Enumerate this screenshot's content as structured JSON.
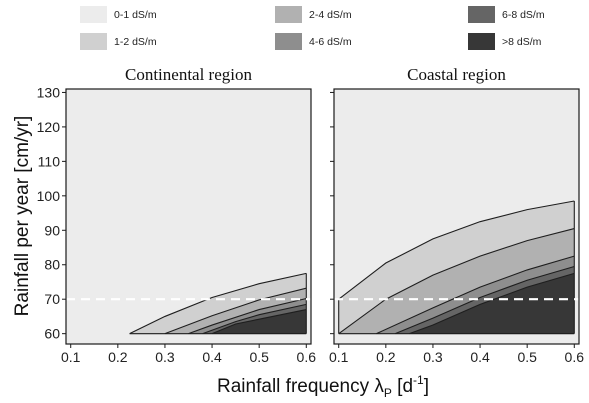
{
  "chart_data": {
    "type": "area",
    "legend": {
      "placement": "top",
      "entries": [
        {
          "label": "0-1 dS/m",
          "color": "#ececec"
        },
        {
          "label": "1-2 dS/m",
          "color": "#d0d0d0"
        },
        {
          "label": "2-4 dS/m",
          "color": "#b1b1b1"
        },
        {
          "label": "4-6 dS/m",
          "color": "#8e8e8e"
        },
        {
          "label": "6-8 dS/m",
          "color": "#656565"
        },
        {
          "label": ">8 dS/m",
          "color": "#373737"
        }
      ]
    },
    "xlabel": {
      "main": "Rainfall frequency λ",
      "sub": "P",
      "unit_open": " [d",
      "unit_sup": "-1",
      "unit_close": "]"
    },
    "ylabel": "Rainfall per year [cm/yr]",
    "xlim": [
      0.09,
      0.61
    ],
    "ylim": [
      57,
      131
    ],
    "xticks": [
      "0.1",
      "0.2",
      "0.3",
      "0.4",
      "0.5",
      "0.6"
    ],
    "yticks": [
      "60",
      "70",
      "80",
      "90",
      "100",
      "110",
      "120",
      "130"
    ],
    "grid": false,
    "reference_line": {
      "y": 70,
      "style": "dashed",
      "color": "#ffffff"
    },
    "panels": [
      {
        "title": "Continental region",
        "boundaries": [
          {
            "x": [
              0.225,
              0.3,
              0.4,
              0.5,
              0.6
            ],
            "y": [
              60,
              65,
              70.5,
              74.5,
              77.5
            ]
          },
          {
            "x": [
              0.3,
              0.4,
              0.5,
              0.6
            ],
            "y": [
              60,
              65.2,
              69.8,
              73.2
            ]
          },
          {
            "x": [
              0.35,
              0.4,
              0.5,
              0.6
            ],
            "y": [
              60,
              62.5,
              67,
              70.2
            ]
          },
          {
            "x": [
              0.38,
              0.45,
              0.5,
              0.6
            ],
            "y": [
              60,
              63.5,
              65.5,
              68.5
            ]
          },
          {
            "x": [
              0.4,
              0.45,
              0.5,
              0.6
            ],
            "y": [
              60,
              62.8,
              64.2,
              67
            ]
          }
        ]
      },
      {
        "title": "Coastal region",
        "boundaries": [
          {
            "x": [
              0.1,
              0.2,
              0.3,
              0.4,
              0.5,
              0.6
            ],
            "y": [
              70,
              80.5,
              87.5,
              92.5,
              96,
              98.5
            ]
          },
          {
            "x": [
              0.1,
              0.2,
              0.3,
              0.4,
              0.5,
              0.6
            ],
            "y": [
              60,
              70,
              77,
              82.5,
              87,
              90.5
            ]
          },
          {
            "x": [
              0.18,
              0.3,
              0.4,
              0.5,
              0.6
            ],
            "y": [
              60,
              67.5,
              73.5,
              78.5,
              82.5
            ]
          },
          {
            "x": [
              0.22,
              0.3,
              0.4,
              0.5,
              0.6
            ],
            "y": [
              60,
              64.5,
              70.5,
              75.5,
              79.5
            ]
          },
          {
            "x": [
              0.25,
              0.3,
              0.4,
              0.5,
              0.6
            ],
            "y": [
              60,
              62.5,
              68.5,
              73.5,
              77.5
            ]
          }
        ]
      }
    ]
  }
}
